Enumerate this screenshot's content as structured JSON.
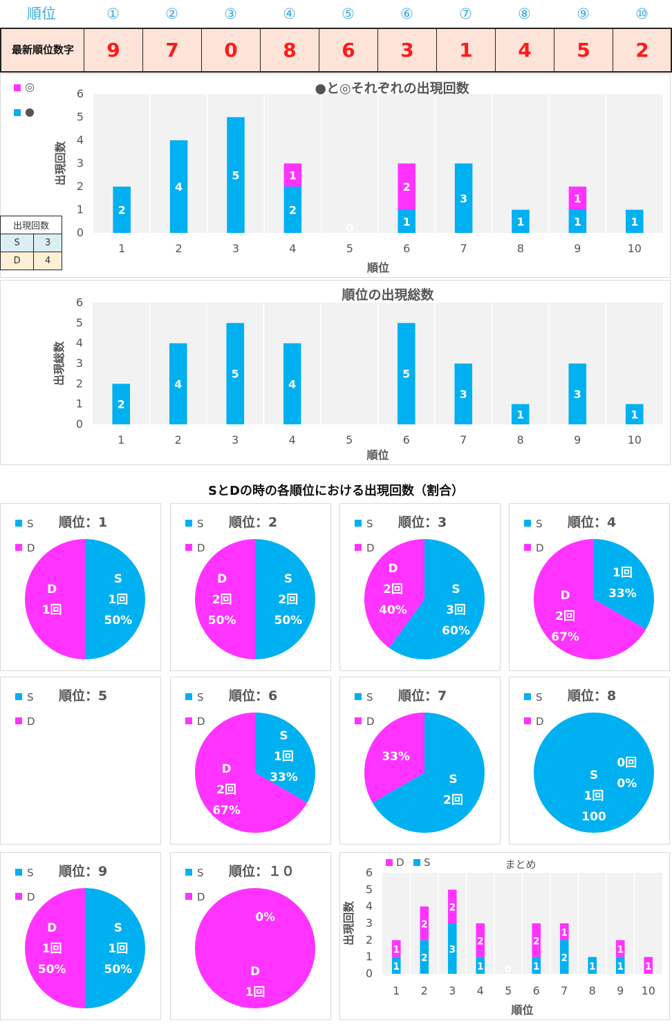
{
  "header": {
    "rank_label": "順位",
    "circled": [
      "①",
      "②",
      "③",
      "④",
      "⑤",
      "⑥",
      "⑦",
      "⑧",
      "⑨",
      "⑩"
    ],
    "latest_label": "最新順位数字",
    "latest_digits": [
      "9",
      "7",
      "0",
      "8",
      "6",
      "3",
      "1",
      "4",
      "5",
      "2"
    ]
  },
  "colors": {
    "s": "#00b0f0",
    "d": "#ff33ff",
    "accent": "#3fa9dc",
    "digit": "#ff1a1a"
  },
  "counts_table": {
    "title": "出現回数",
    "rows": [
      {
        "label": "S",
        "value": "3"
      },
      {
        "label": "D",
        "value": "4"
      }
    ]
  },
  "legend_top": {
    "d": "◎",
    "s": "●"
  },
  "chart_data": [
    {
      "type": "bar",
      "title": "●と◎それぞれの出現回数",
      "xlabel": "順位",
      "ylabel": "出現回数",
      "ylim": [
        0,
        6
      ],
      "categories": [
        "1",
        "2",
        "3",
        "4",
        "5",
        "6",
        "7",
        "8",
        "9",
        "10"
      ],
      "series": [
        {
          "name": "●",
          "values": [
            2,
            4,
            5,
            2,
            0,
            1,
            3,
            1,
            1,
            1
          ]
        },
        {
          "name": "◎",
          "values": [
            0,
            0,
            0,
            1,
            0,
            2,
            0,
            0,
            1,
            0
          ]
        }
      ]
    },
    {
      "type": "bar",
      "title": "順位の出現総数",
      "xlabel": "順位",
      "ylabel": "出現総数",
      "ylim": [
        0,
        6
      ],
      "categories": [
        "1",
        "2",
        "3",
        "4",
        "5",
        "6",
        "7",
        "8",
        "9",
        "10"
      ],
      "values": [
        2,
        4,
        5,
        4,
        0,
        5,
        3,
        1,
        3,
        1
      ]
    },
    {
      "type": "pie",
      "section_title": "SとDの時の各順位における出現回数（割合）",
      "legend": [
        "S",
        "D"
      ],
      "pies": [
        {
          "title": "順位：1",
          "s": 1,
          "d": 1,
          "s_label": [
            "S",
            "1回",
            "50%"
          ],
          "d_label": [
            "D",
            "1回"
          ]
        },
        {
          "title": "順位：2",
          "s": 2,
          "d": 2,
          "s_label": [
            "S",
            "2回",
            "50%"
          ],
          "d_label": [
            "D",
            "2回",
            "50%"
          ]
        },
        {
          "title": "順位：3",
          "s": 3,
          "d": 2,
          "s_label": [
            "S",
            "3回",
            "60%"
          ],
          "d_label": [
            "D",
            "2回",
            "40%"
          ]
        },
        {
          "title": "順位：4",
          "s": 1,
          "d": 2,
          "s_label": [
            "1回",
            "33%"
          ],
          "d_label": [
            "D",
            "2回",
            "67%"
          ]
        },
        {
          "title": "順位：5",
          "s": 0,
          "d": 0,
          "s_label": [],
          "d_label": []
        },
        {
          "title": "順位：6",
          "s": 1,
          "d": 2,
          "s_label": [
            "S",
            "1回",
            "33%"
          ],
          "d_label": [
            "D",
            "2回",
            "67%"
          ]
        },
        {
          "title": "順位：7",
          "s": 2,
          "d": 1,
          "s_label": [
            "S",
            "2回"
          ],
          "d_label": [
            "33%"
          ]
        },
        {
          "title": "順位：8",
          "s": 1,
          "d": 0,
          "s_label": [
            "S",
            "1回",
            "100",
            "%"
          ],
          "d_label": [
            "0回",
            "0%"
          ]
        },
        {
          "title": "順位：9",
          "s": 1,
          "d": 1,
          "s_label": [
            "S",
            "1回",
            "50%"
          ],
          "d_label": [
            "D",
            "1回",
            "50%"
          ]
        },
        {
          "title": "順位：１０",
          "s": 0,
          "d": 1,
          "s_label": [
            "0%"
          ],
          "d_label": [
            "D",
            "1回"
          ]
        }
      ]
    },
    {
      "type": "bar",
      "title": "まとめ",
      "xlabel": "順位",
      "ylabel": "出現回数",
      "ylim": [
        0,
        6
      ],
      "categories": [
        "1",
        "2",
        "3",
        "4",
        "5",
        "6",
        "7",
        "8",
        "9",
        "10"
      ],
      "series": [
        {
          "name": "S",
          "values": [
            1,
            2,
            3,
            1,
            0,
            1,
            2,
            1,
            1,
            0
          ]
        },
        {
          "name": "D",
          "values": [
            1,
            2,
            2,
            2,
            0,
            2,
            1,
            0,
            1,
            1
          ]
        }
      ]
    }
  ]
}
